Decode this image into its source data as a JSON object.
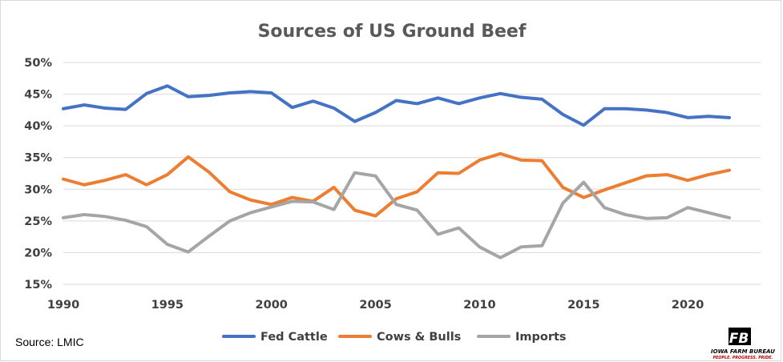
{
  "chart_data": {
    "type": "line",
    "title": "Sources of US Ground Beef",
    "x": [
      1990,
      1991,
      1992,
      1993,
      1994,
      1995,
      1996,
      1997,
      1998,
      1999,
      2000,
      2001,
      2002,
      2003,
      2004,
      2005,
      2006,
      2007,
      2008,
      2009,
      2010,
      2011,
      2012,
      2013,
      2014,
      2015,
      2016,
      2017,
      2018,
      2019,
      2020,
      2021,
      2022
    ],
    "x_ticks": [
      1990,
      1995,
      2000,
      2005,
      2010,
      2015,
      2020
    ],
    "x_tick_labels": [
      "1990",
      "1995",
      "2000",
      "2005",
      "2010",
      "2015",
      "2020"
    ],
    "xlim": [
      1990,
      2023.5
    ],
    "ylim": [
      15,
      50
    ],
    "y_ticks": [
      15,
      20,
      25,
      30,
      35,
      40,
      45,
      50
    ],
    "y_tick_labels": [
      "15%",
      "20%",
      "25%",
      "30%",
      "35%",
      "40%",
      "45%",
      "50%"
    ],
    "grid": true,
    "legend_position": "bottom",
    "series": [
      {
        "name": "Fed Cattle",
        "color": "#4472c4",
        "values": [
          42.7,
          43.3,
          42.8,
          42.6,
          45.1,
          46.3,
          44.6,
          44.8,
          45.2,
          45.4,
          45.2,
          42.9,
          43.9,
          42.8,
          40.7,
          42.1,
          44.0,
          43.5,
          44.4,
          43.5,
          44.4,
          45.1,
          44.5,
          44.2,
          41.8,
          40.1,
          42.7,
          42.7,
          42.5,
          42.1,
          41.3,
          41.5,
          41.3
        ]
      },
      {
        "name": "Cows & Bulls",
        "color": "#ed7d31",
        "values": [
          31.6,
          30.7,
          31.4,
          32.3,
          30.7,
          32.3,
          35.1,
          32.7,
          29.6,
          28.3,
          27.6,
          28.7,
          28.1,
          30.3,
          26.7,
          25.8,
          28.5,
          29.6,
          32.6,
          32.5,
          34.6,
          35.6,
          34.6,
          34.5,
          30.3,
          28.7,
          29.9,
          31.0,
          32.1,
          32.3,
          31.4,
          32.3,
          33.0
        ]
      },
      {
        "name": "Imports",
        "color": "#a5a5a5",
        "values": [
          25.5,
          26.0,
          25.7,
          25.1,
          24.1,
          21.3,
          20.1,
          22.6,
          25.0,
          26.3,
          27.2,
          28.1,
          28.0,
          26.8,
          32.6,
          32.1,
          27.6,
          26.7,
          22.9,
          23.9,
          20.9,
          19.2,
          20.9,
          21.1,
          27.8,
          31.1,
          27.1,
          26.0,
          25.4,
          25.5,
          27.1,
          26.3,
          25.5
        ]
      }
    ]
  },
  "source_note": "Source: LMIC",
  "logo": {
    "mark": "FB",
    "name": "IOWA FARM BUREAU",
    "tagline": "PEOPLE. PROGRESS. PRIDE."
  }
}
